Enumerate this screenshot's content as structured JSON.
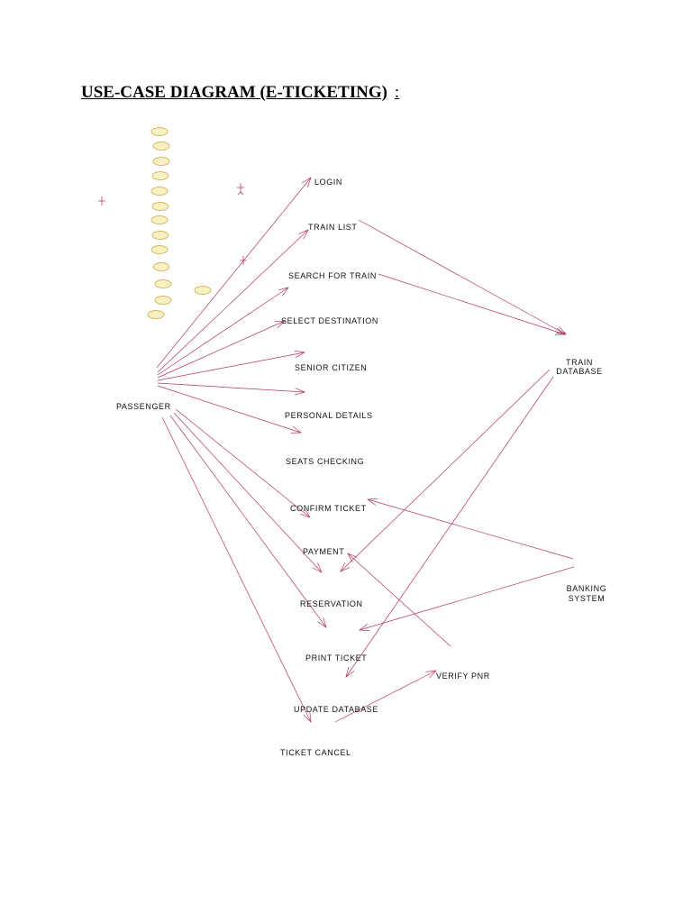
{
  "title": "USE-CASE DIAGRAM (E-TICKETING)",
  "title_suffix": ":",
  "actors": {
    "passenger": "PASSENGER",
    "train_database_line1": "TRAIN",
    "train_database_line2": "DATABASE",
    "banking_line1": "BANKING",
    "banking_line2": "SYSTEM"
  },
  "use_cases": {
    "login": "LOGIN",
    "train_list": "TRAIN LIST",
    "search_for_train": "SEARCH FOR TRAIN",
    "select_destination": "SELECT DESTINATION",
    "senior_citizen": "SENIOR CITIZEN",
    "personal_details": "PERSONAL DETAILS",
    "seats_checking": "SEATS CHECKING",
    "confirm_ticket": "CONFIRM TICKET",
    "payment": "PAYMENT",
    "reservation": "RESERVATION",
    "print_ticket": "PRINT TICKET",
    "verify_pnr": "VERIFY PNR",
    "update_database": "UPDATE DATABASE",
    "ticket_cancel": "TICKET CANCEL"
  },
  "colors": {
    "connector": "#b23a5a",
    "usecase_fill": "#f6f0c2",
    "usecase_stroke": "#c8a640"
  }
}
